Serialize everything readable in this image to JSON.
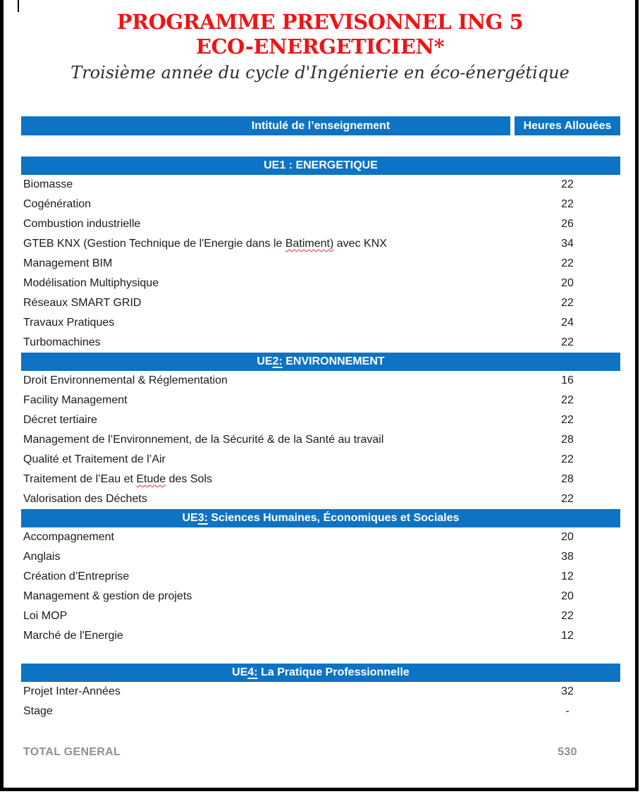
{
  "header": {
    "title_line1": "PROGRAMME PREVISONNEL ING 5",
    "title_line2": "ECO-ENERGETICIEN*",
    "subtitle": "Troisième année du cycle d'Ingénierie en éco-énergétique"
  },
  "colors": {
    "accent_blue": "#0d73c4",
    "title_red": "#ee1515",
    "total_gray": "#8d9196"
  },
  "table": {
    "columns": {
      "col1": "Intitulé de l’enseignement",
      "col2": "Heures Allouées"
    },
    "sections": [
      {
        "title_parts": [
          {
            "text": "UE1 : ENERGETIQUE"
          }
        ],
        "gap_before": false,
        "rows": [
          {
            "parts": [
              {
                "text": "Biomasse"
              }
            ],
            "hours": "22"
          },
          {
            "parts": [
              {
                "text": "Cogénération"
              }
            ],
            "hours": "22"
          },
          {
            "parts": [
              {
                "text": "Combustion industrielle"
              }
            ],
            "hours": "26"
          },
          {
            "parts": [
              {
                "text": "GTEB KNX (Gestion Technique de l'Energie dans le "
              },
              {
                "text": "Batiment)",
                "misspelled": true
              },
              {
                "text": " avec KNX"
              }
            ],
            "hours": "34"
          },
          {
            "parts": [
              {
                "text": "Management BIM"
              }
            ],
            "hours": "22"
          },
          {
            "parts": [
              {
                "text": "Modélisation Multiphysique"
              }
            ],
            "hours": "20"
          },
          {
            "parts": [
              {
                "text": "Réseaux SMART GRID"
              }
            ],
            "hours": "22"
          },
          {
            "parts": [
              {
                "text": "Travaux Pratiques"
              }
            ],
            "hours": "24"
          },
          {
            "parts": [
              {
                "text": "Turbomachines"
              }
            ],
            "hours": "22"
          }
        ]
      },
      {
        "title_parts": [
          {
            "text": "UE"
          },
          {
            "text": "2:",
            "underline": true
          },
          {
            "text": " ENVIRONNEMENT"
          }
        ],
        "gap_before": false,
        "rows": [
          {
            "parts": [
              {
                "text": "Droit Environnemental & Réglementation"
              }
            ],
            "hours": "16"
          },
          {
            "parts": [
              {
                "text": "Facility Management"
              }
            ],
            "hours": "22"
          },
          {
            "parts": [
              {
                "text": "Décret tertiaire"
              }
            ],
            "hours": "22"
          },
          {
            "parts": [
              {
                "text": "Management de l’Environnement, de la Sécurité & de la Santé au travail"
              }
            ],
            "hours": "28"
          },
          {
            "parts": [
              {
                "text": "Qualité et Traitement de l’Air"
              }
            ],
            "hours": "22"
          },
          {
            "parts": [
              {
                "text": "Traitement de l’Eau et "
              },
              {
                "text": "Etude",
                "misspelled": true
              },
              {
                "text": " des Sols"
              }
            ],
            "hours": "28"
          },
          {
            "parts": [
              {
                "text": "Valorisation des Déchets"
              }
            ],
            "hours": "22"
          }
        ]
      },
      {
        "title_parts": [
          {
            "text": "UE"
          },
          {
            "text": "3:",
            "underline": true
          },
          {
            "text": " Sciences Humaines, Économiques et Sociales"
          }
        ],
        "gap_before": false,
        "rows": [
          {
            "parts": [
              {
                "text": "Accompagnement"
              }
            ],
            "hours": "20"
          },
          {
            "parts": [
              {
                "text": "Anglais"
              }
            ],
            "hours": "38"
          },
          {
            "parts": [
              {
                "text": "Création d’Entreprise"
              }
            ],
            "hours": "12"
          },
          {
            "parts": [
              {
                "text": "Management & gestion de projets"
              }
            ],
            "hours": "20"
          },
          {
            "parts": [
              {
                "text": "Loi MOP"
              }
            ],
            "hours": "22"
          },
          {
            "parts": [
              {
                "text": "Marché de l'Energie"
              }
            ],
            "hours": "12"
          }
        ]
      },
      {
        "title_parts": [
          {
            "text": "UE"
          },
          {
            "text": "4:",
            "underline": true
          },
          {
            "text": " La Pratique Professionnelle"
          }
        ],
        "gap_before": true,
        "rows": [
          {
            "parts": [
              {
                "text": "Projet Inter-Années"
              }
            ],
            "hours": "32"
          },
          {
            "parts": [
              {
                "text": "Stage"
              }
            ],
            "hours": "-"
          }
        ]
      }
    ],
    "total": {
      "label": "TOTAL GENERAL",
      "value": "530"
    }
  }
}
